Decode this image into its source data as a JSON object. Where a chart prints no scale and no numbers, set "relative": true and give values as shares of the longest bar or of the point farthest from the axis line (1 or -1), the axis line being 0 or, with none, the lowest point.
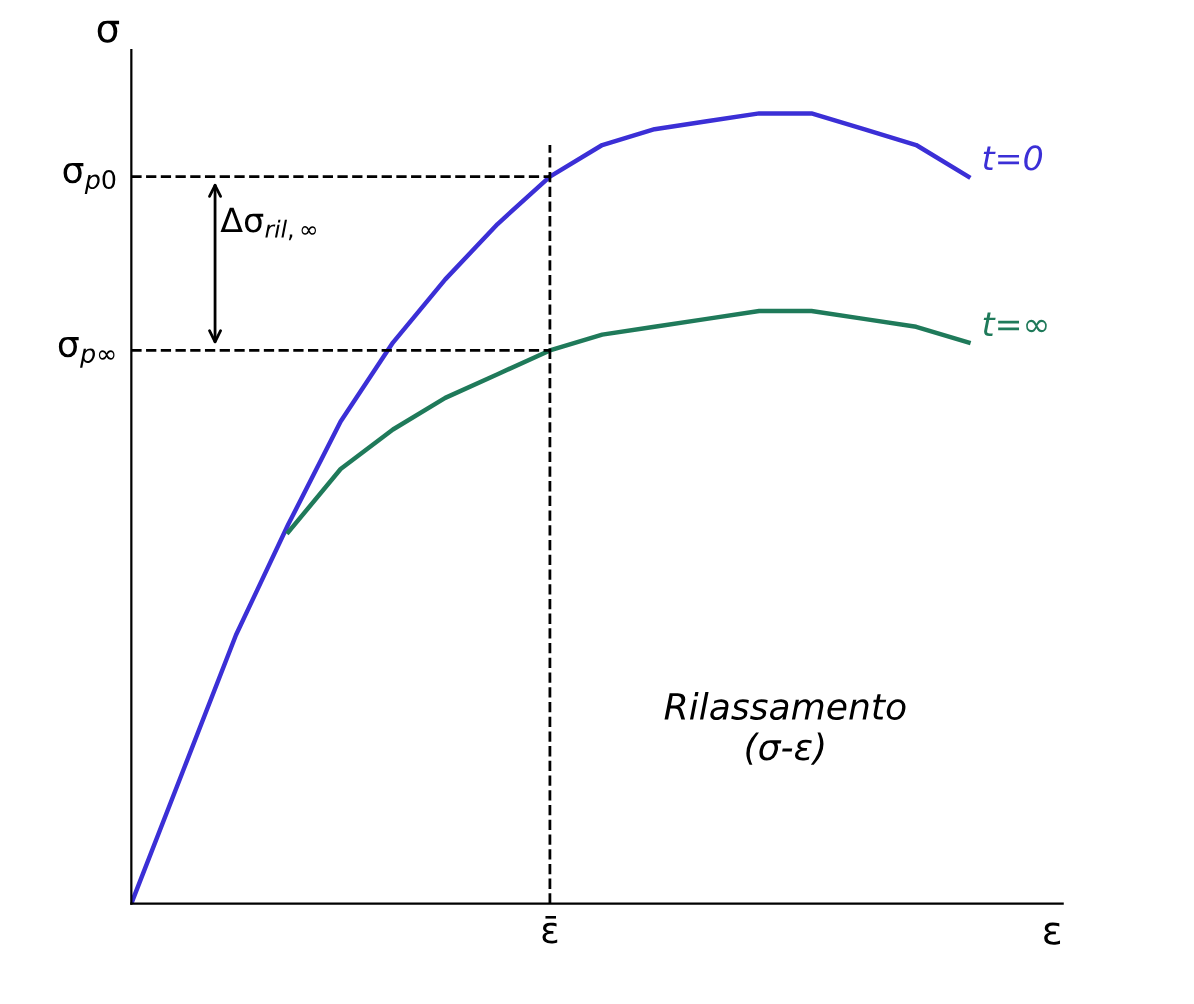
{
  "chart_data": {
    "type": "line",
    "relative": true,
    "xlabel": "ε",
    "ylabel": "σ",
    "categories": [
      null,
      null,
      null,
      null,
      null,
      null,
      null,
      null,
      null,
      null,
      null,
      null,
      null,
      null,
      null,
      null,
      null
    ],
    "series": [
      {
        "name": "t=0",
        "color": "#3b2fd6",
        "values": [
          0,
          0.17,
          0.34,
          0.48,
          0.61,
          0.71,
          0.79,
          0.86,
          0.92,
          0.96,
          0.98,
          0.99,
          1.0,
          1.0,
          0.98,
          0.96,
          0.92
        ]
      },
      {
        "name": "t=∞",
        "color": "#1f7a5a",
        "values": [
          null,
          null,
          null,
          0.47,
          0.55,
          0.6,
          0.64,
          0.67,
          0.7,
          0.72,
          0.73,
          0.74,
          0.75,
          0.75,
          0.74,
          0.73,
          0.71
        ]
      }
    ],
    "ref_lines": [
      {
        "axis": "y",
        "value": 0.92,
        "label": "σ$_{p0}$",
        "line_style": "dashed",
        "color": "#000000"
      },
      {
        "axis": "y",
        "value": 0.7,
        "label": "σ$_{p∞}$",
        "line_style": "dashed",
        "color": "#000000"
      }
    ],
    "annotations": [
      "Δσ$_{ril,∞}$",
      "Rilassamento\n(σ-ε)",
      "ε̄"
    ],
    "legend": false,
    "marker": "none",
    "line_style": "solid"
  }
}
